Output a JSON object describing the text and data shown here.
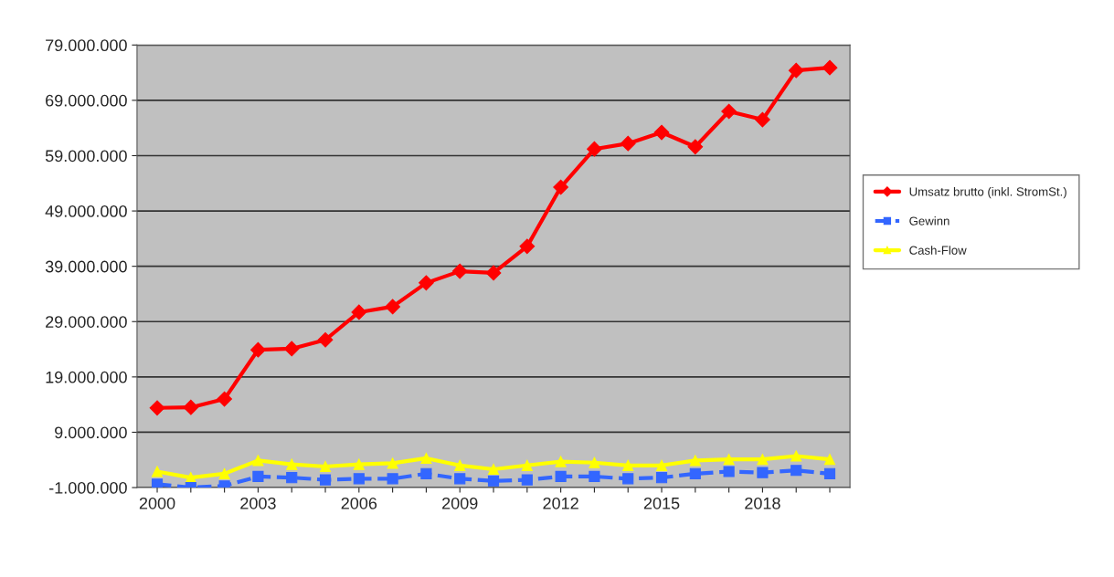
{
  "chart_data": {
    "type": "line",
    "categories": [
      "2000",
      null,
      null,
      "2003",
      null,
      null,
      "2006",
      null,
      null,
      "2009",
      null,
      null,
      "2012",
      null,
      null,
      "2015",
      null,
      null,
      "2018",
      null,
      null
    ],
    "series": [
      {
        "name": "Umsatz brutto (inkl. StromSt.)",
        "color": "#ff0000",
        "marker": "diamond",
        "line_style": "solid",
        "values": [
          13400000,
          13500000,
          15000000,
          23900000,
          24100000,
          25700000,
          30700000,
          31700000,
          36000000,
          38100000,
          37800000,
          42600000,
          53300000,
          60200000,
          61200000,
          63200000,
          60600000,
          67000000,
          65500000,
          74400000,
          74900000
        ]
      },
      {
        "name": "Gewinn",
        "color": "#3366ff",
        "marker": "square",
        "line_style": "dashed",
        "values": [
          -400000,
          -1000000,
          -700000,
          1000000,
          800000,
          400000,
          600000,
          600000,
          1500000,
          600000,
          200000,
          400000,
          1000000,
          1000000,
          600000,
          800000,
          1500000,
          1900000,
          1700000,
          2100000,
          1500000
        ]
      },
      {
        "name": "Cash-Flow",
        "color": "#ffff00",
        "marker": "triangle",
        "line_style": "solid",
        "values": [
          1900000,
          800000,
          1500000,
          3900000,
          3200000,
          2800000,
          3200000,
          3400000,
          4300000,
          3000000,
          2300000,
          3000000,
          3700000,
          3500000,
          3000000,
          3000000,
          3900000,
          4100000,
          4100000,
          4700000,
          4100000
        ]
      }
    ],
    "ylim": [
      -1000000,
      79000000
    ],
    "yticks": [
      {
        "value": -1000000,
        "label": "-1.000.000"
      },
      {
        "value": 9000000,
        "label": "9.000.000"
      },
      {
        "value": 19000000,
        "label": "19.000.000"
      },
      {
        "value": 29000000,
        "label": "29.000.000"
      },
      {
        "value": 39000000,
        "label": "39.000.000"
      },
      {
        "value": 49000000,
        "label": "49.000.000"
      },
      {
        "value": 59000000,
        "label": "59.000.000"
      },
      {
        "value": 69000000,
        "label": "69.000.000"
      },
      {
        "value": 79000000,
        "label": "79.000.000"
      }
    ],
    "grid": "y",
    "legend": "right"
  }
}
